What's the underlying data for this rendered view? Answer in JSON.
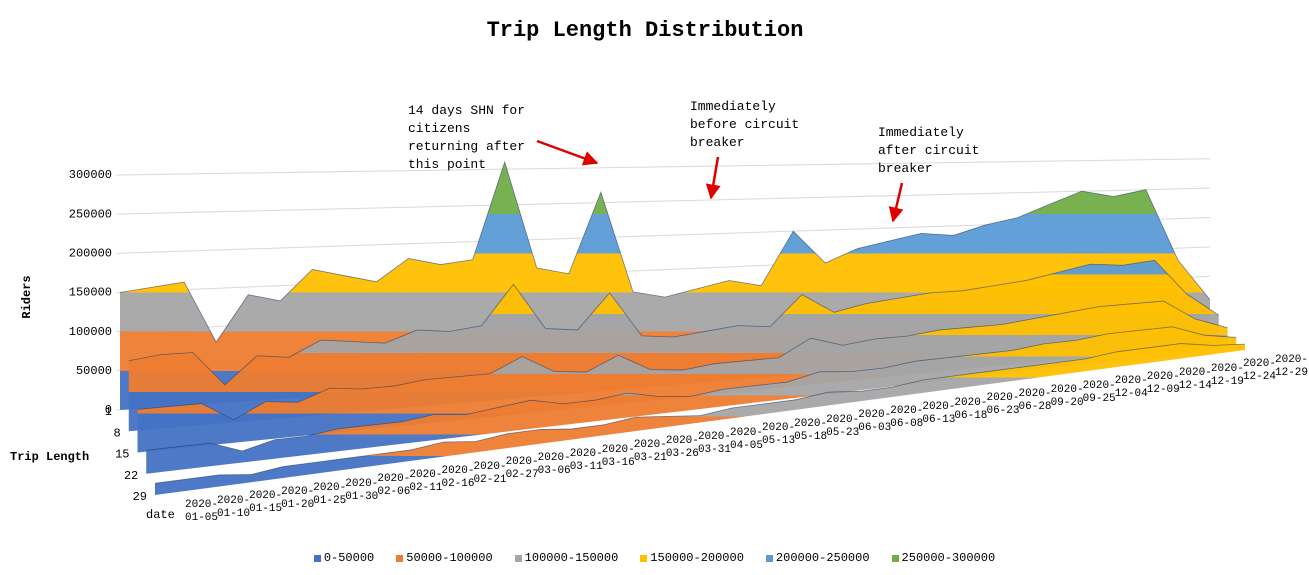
{
  "chart_data": {
    "type": "surface",
    "title": "Trip Length Distribution",
    "y_label": "Riders",
    "z_label": "Trip Length",
    "x_label": "date",
    "categories": [
      "2020-01-05",
      "2020-01-10",
      "2020-01-15",
      "2020-01-20",
      "2020-01-25",
      "2020-01-30",
      "2020-02-06",
      "2020-02-11",
      "2020-02-16",
      "2020-02-21",
      "2020-02-27",
      "2020-03-06",
      "2020-03-11",
      "2020-03-16",
      "2020-03-21",
      "2020-03-26",
      "2020-03-31",
      "2020-04-05",
      "2020-05-13",
      "2020-05-18",
      "2020-05-23",
      "2020-06-03",
      "2020-06-08",
      "2020-06-13",
      "2020-06-18",
      "2020-06-23",
      "2020-06-28",
      "2020-09-20",
      "2020-09-25",
      "2020-12-04",
      "2020-12-09",
      "2020-12-14",
      "2020-12-19",
      "2020-12-24",
      "2020-12-29"
    ],
    "series": [
      {
        "name": "1",
        "values": [
          150000,
          155000,
          160000,
          80000,
          140000,
          130000,
          170000,
          160000,
          150000,
          180000,
          170000,
          175000,
          310000,
          160000,
          150000,
          265000,
          120000,
          110000,
          120000,
          130000,
          120000,
          200000,
          150000,
          170000,
          180000,
          190000,
          185000,
          200000,
          210000,
          230000,
          250000,
          240000,
          250000,
          130000,
          60000
        ]
      },
      {
        "name": "8",
        "values": [
          90000,
          95000,
          95000,
          50000,
          85000,
          80000,
          100000,
          95000,
          90000,
          105000,
          100000,
          105000,
          160000,
          95000,
          90000,
          140000,
          75000,
          70000,
          75000,
          80000,
          75000,
          120000,
          90000,
          100000,
          105000,
          110000,
          110000,
          115000,
          120000,
          130000,
          140000,
          135000,
          140000,
          80000,
          40000
        ]
      },
      {
        "name": "15",
        "values": [
          55000,
          55000,
          55000,
          30000,
          50000,
          45000,
          60000,
          55000,
          55000,
          60000,
          60000,
          60000,
          80000,
          55000,
          50000,
          70000,
          45000,
          40000,
          45000,
          45000,
          45000,
          70000,
          55000,
          60000,
          60000,
          65000,
          65000,
          65000,
          70000,
          75000,
          80000,
          80000,
          80000,
          45000,
          25000
        ]
      },
      {
        "name": "22",
        "values": [
          30000,
          30000,
          30000,
          15000,
          25000,
          25000,
          30000,
          30000,
          30000,
          35000,
          30000,
          35000,
          40000,
          30000,
          30000,
          35000,
          25000,
          20000,
          25000,
          25000,
          25000,
          35000,
          30000,
          30000,
          35000,
          35000,
          35000,
          35000,
          40000,
          40000,
          45000,
          45000,
          45000,
          25000,
          15000
        ]
      },
      {
        "name": "29",
        "values": [
          15000,
          15000,
          15000,
          10000,
          15000,
          15000,
          15000,
          15000,
          15000,
          20000,
          15000,
          20000,
          20000,
          15000,
          15000,
          20000,
          15000,
          10000,
          15000,
          15000,
          15000,
          20000,
          15000,
          15000,
          20000,
          20000,
          20000,
          20000,
          20000,
          20000,
          25000,
          25000,
          25000,
          15000,
          10000
        ]
      }
    ],
    "ylim": [
      0,
      300000
    ],
    "yticks": [
      0,
      50000,
      100000,
      150000,
      200000,
      250000,
      300000
    ],
    "grid": true,
    "legend": [
      {
        "label": "0-50000",
        "color": "#4472c4"
      },
      {
        "label": "50000-100000",
        "color": "#ed7d31"
      },
      {
        "label": "100000-150000",
        "color": "#a5a5a5"
      },
      {
        "label": "150000-200000",
        "color": "#ffc000"
      },
      {
        "label": "200000-250000",
        "color": "#5b9bd5"
      },
      {
        "label": "250000-300000",
        "color": "#70ad47"
      }
    ],
    "annotations": [
      {
        "text": "14 days SHN for citizens returning after this point"
      },
      {
        "text": "Immediately before circuit breaker"
      },
      {
        "text": "Immediately after circuit breaker"
      }
    ]
  }
}
